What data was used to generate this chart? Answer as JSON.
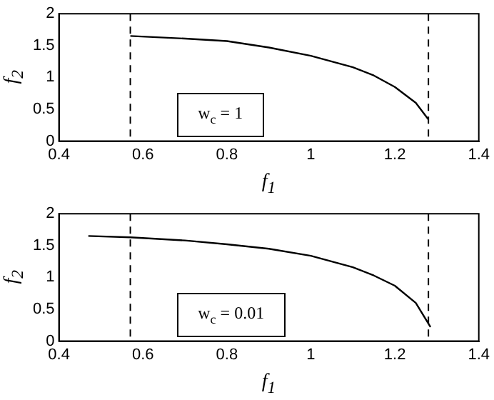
{
  "chart_data": [
    {
      "type": "line",
      "xlabel": "f$_{1}$",
      "ylabel": "f$_{2}$",
      "annotations": [
        "w$_{c}$ = 1"
      ],
      "series": [
        {
          "color": "#000000",
          "x": [
            0.57,
            0.7,
            0.8,
            0.9,
            1.0,
            1.1,
            1.15,
            1.2,
            1.25,
            1.28
          ],
          "values": [
            1.65,
            1.61,
            1.57,
            1.47,
            1.34,
            1.16,
            1.03,
            0.85,
            0.6,
            0.34
          ]
        }
      ],
      "xlim": [
        0.4,
        1.4
      ],
      "xticks": [
        0.4,
        0.6,
        0.8,
        1,
        1.2,
        1.4
      ],
      "ylim": [
        0,
        2
      ],
      "yticks": [
        0,
        0.5,
        1,
        1.5,
        2
      ],
      "ref_lines": [
        {
          "axis": "x",
          "value": 0.57,
          "line_style": "dashed",
          "color": "#000000"
        },
        {
          "axis": "x",
          "value": 1.28,
          "line_style": "dashed",
          "color": "#000000"
        }
      ],
      "grid": false,
      "legend": false,
      "marker": "none",
      "line_style": "solid"
    },
    {
      "type": "line",
      "xlabel": "f$_{1}$",
      "ylabel": "f$_{2}$",
      "annotations": [
        "w$_{c}$ = 0.01"
      ],
      "series": [
        {
          "color": "#000000",
          "x": [
            0.47,
            0.57,
            0.7,
            0.8,
            0.9,
            1.0,
            1.1,
            1.15,
            1.2,
            1.25,
            1.285
          ],
          "values": [
            1.65,
            1.63,
            1.58,
            1.52,
            1.45,
            1.34,
            1.16,
            1.03,
            0.87,
            0.6,
            0.22
          ]
        }
      ],
      "xlim": [
        0.4,
        1.4
      ],
      "xticks": [
        0.4,
        0.6,
        0.8,
        1,
        1.2,
        1.4
      ],
      "ylim": [
        0,
        2
      ],
      "yticks": [
        0,
        0.5,
        1,
        1.5,
        2
      ],
      "ref_lines": [
        {
          "axis": "x",
          "value": 0.57,
          "line_style": "dashed",
          "color": "#000000"
        },
        {
          "axis": "x",
          "value": 1.28,
          "line_style": "dashed",
          "color": "#000000"
        }
      ],
      "grid": false,
      "legend": false,
      "marker": "none",
      "line_style": "solid"
    }
  ]
}
